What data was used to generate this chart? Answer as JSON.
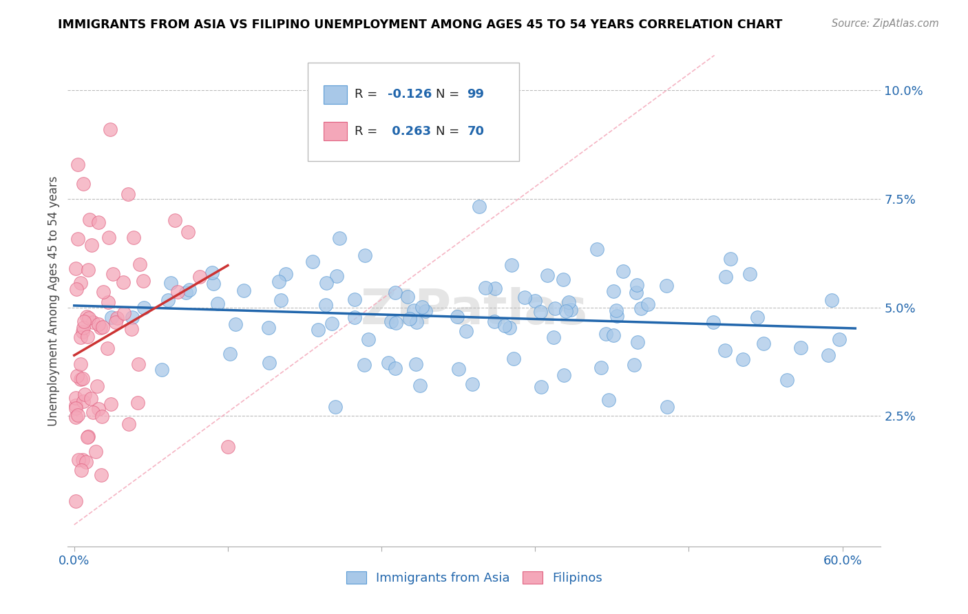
{
  "title": "IMMIGRANTS FROM ASIA VS FILIPINO UNEMPLOYMENT AMONG AGES 45 TO 54 YEARS CORRELATION CHART",
  "source_text": "Source: ZipAtlas.com",
  "ylabel": "Unemployment Among Ages 45 to 54 years",
  "legend1_R": "-0.126",
  "legend1_N": "99",
  "legend2_R": "0.263",
  "legend2_N": "70",
  "blue_color": "#a8c8e8",
  "blue_edge_color": "#5b9bd5",
  "pink_color": "#f4a7b9",
  "pink_edge_color": "#e06080",
  "blue_line_color": "#2166ac",
  "pink_line_color": "#cc3333",
  "diag_line_color": "#f4a7b9",
  "watermark": "ZIPatlas",
  "xlim": [
    -0.005,
    0.63
  ],
  "ylim": [
    -0.005,
    0.108
  ],
  "yticks": [
    0.025,
    0.05,
    0.075,
    0.1
  ],
  "ytick_labels": [
    "2.5%",
    "5.0%",
    "7.5%",
    "10.0%"
  ],
  "xticks": [
    0.0,
    0.12,
    0.24,
    0.36,
    0.48,
    0.6
  ],
  "xtick_labels": [
    "0.0%",
    "",
    "",
    "",
    "",
    "60.0%"
  ]
}
